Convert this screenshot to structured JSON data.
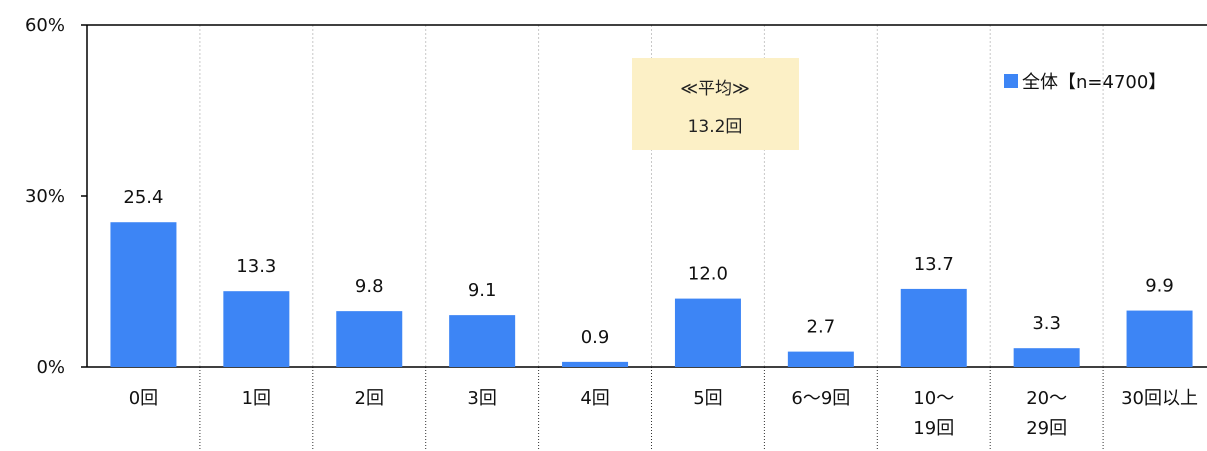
{
  "chart_data": {
    "type": "bar",
    "categories": [
      "0回",
      "1回",
      "2回",
      "3回",
      "4回",
      "5回",
      "6〜9回",
      "10〜\n19回",
      "20〜\n29回",
      "30回以上"
    ],
    "series": [
      {
        "name": "全体【n=4700】",
        "values": [
          25.4,
          13.3,
          9.8,
          9.1,
          0.9,
          12.0,
          2.7,
          13.7,
          3.3,
          9.9
        ]
      }
    ],
    "data_labels": [
      "25.4",
      "13.3",
      "9.8",
      "9.1",
      "0.9",
      "12.0",
      "2.7",
      "13.7",
      "3.3",
      "9.9"
    ],
    "ylim": [
      0,
      60
    ],
    "yticks": [
      "0%",
      "30%",
      "60%"
    ],
    "ytick_values": [
      0,
      30,
      60
    ],
    "legend": {
      "label": "全体【n=4700】",
      "placement": "top-right"
    },
    "annotation": {
      "line1": "≪平均≫",
      "line2": "13.2回"
    },
    "colors": {
      "bar": "#3d85f5",
      "annotation_bg": "#fcf0c6",
      "grid": "#c8c8c8",
      "axis": "#000000"
    },
    "grid": "vertical dotted"
  }
}
